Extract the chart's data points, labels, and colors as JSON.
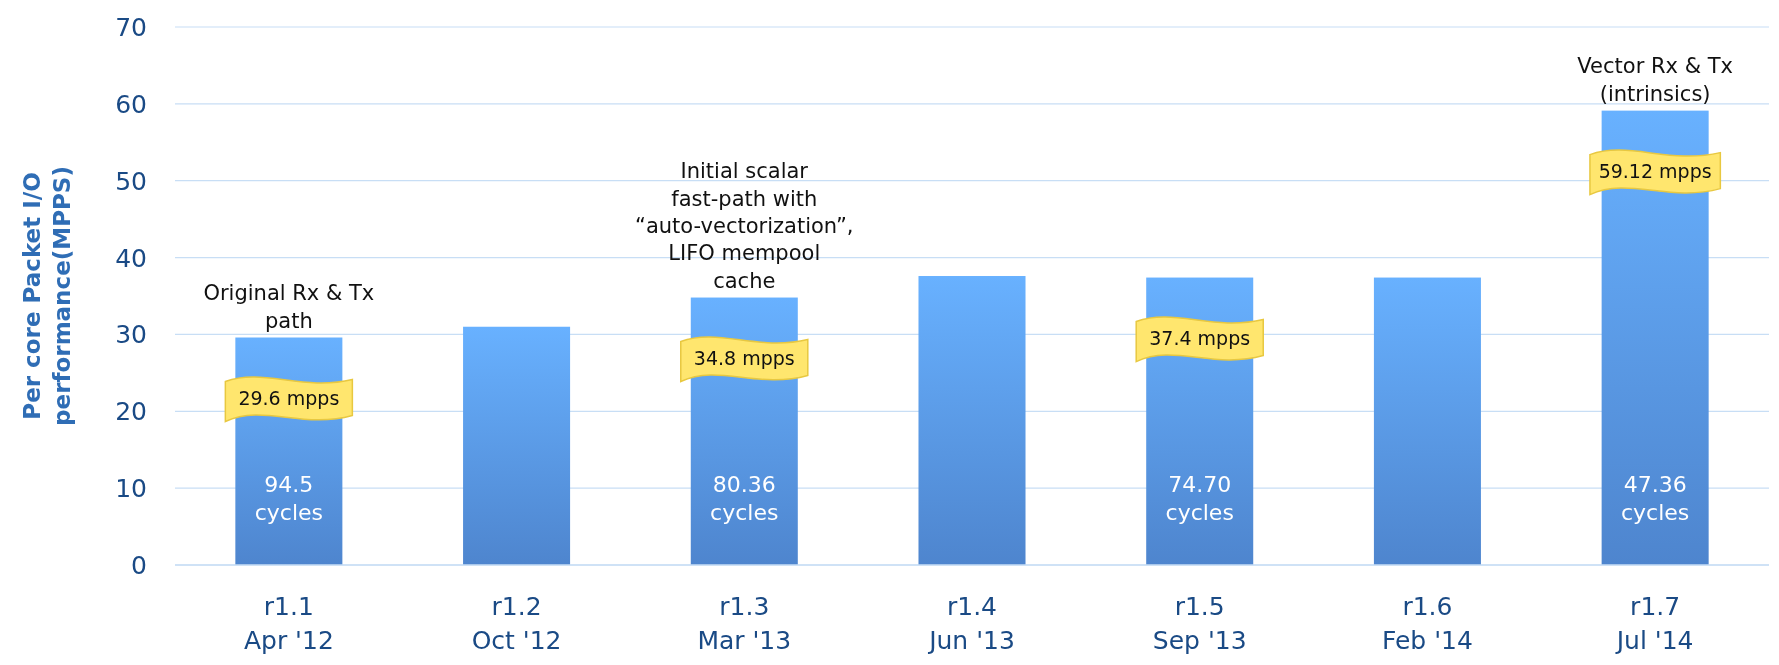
{
  "chart_data": {
    "type": "bar",
    "ylabel": "Per core Packet I/O performance(MPPS)",
    "categories": [
      "r1.1 Apr '12",
      "r1.2 Oct '12",
      "r1.3 Mar '13",
      "r1.4 Jun '13",
      "r1.5 Sep '13",
      "r1.6 Feb '14",
      "r1.7 Jul '14"
    ],
    "series": [
      {
        "color": "#5c9cf2",
        "values": [
          29.6,
          31,
          34.8,
          37.6,
          37.4,
          37.4,
          59.12
        ],
        "value_labels": [
          "29.6 mpps",
          null,
          "34.8 mpps",
          null,
          "37.4 mpps",
          null,
          "59.12 mpps"
        ]
      }
    ],
    "ylim": [
      0,
      70
    ],
    "yticks": [
      0,
      10,
      20,
      30,
      40,
      50,
      60,
      70
    ],
    "grid": "y",
    "annotations": [
      "94.5 cycles",
      "80.36 cycles",
      "74.70 cycles",
      "47.36 cycles",
      {
        "text": "Original Rx & Tx path",
        "x": "r1.1 Apr '12",
        "y": 29.6
      },
      {
        "text": "Initial scalar fast-path with “auto-vectorization”, LIFO mempool cache",
        "x": "r1.3 Mar '13",
        "y": 34.8
      },
      {
        "text": "Vector Rx & Tx (intrinsics)",
        "x": "r1.7 Jul '14",
        "y": 59.12
      }
    ]
  }
}
